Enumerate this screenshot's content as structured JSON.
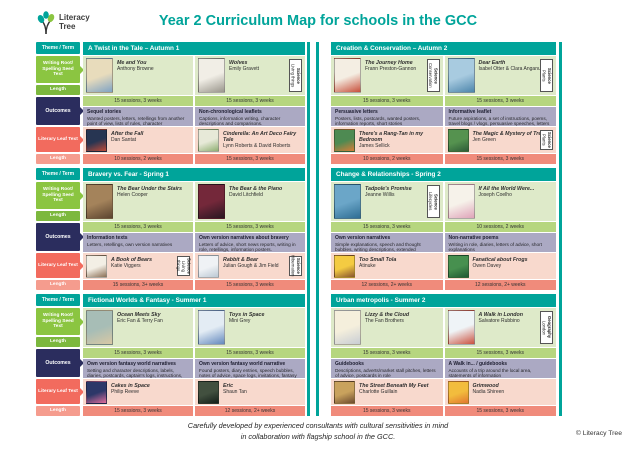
{
  "page": {
    "logo": {
      "line1": "Literacy",
      "line2": "Tree"
    },
    "title": "Year 2 Curriculum Map for schools in the GCC",
    "footer_line1": "Carefully developed by experienced consultants with cultural sensitivities in mind",
    "footer_line2": "in collaboration with flagship school in the GCC.",
    "copyright": "© Literacy Tree"
  },
  "colors": {
    "teal": "#00A49A",
    "root_section_bg": "#DEEAC9",
    "root_sessions_bar": "#B6D67F",
    "outcomes_bg": "#ABA9C3",
    "leaf_section_bg": "#F8D9CD",
    "leaf_sessions_bar": "#F08B7B",
    "sidebar_green": "#8BC541",
    "sidebar_navy": "#2B2D5E",
    "sidebar_coral": "#F26B5E",
    "sidebar_coral_light": "#F59C8E"
  },
  "sidebar": {
    "items": [
      {
        "label": "Theme / Term",
        "type": "theme"
      },
      {
        "label": "Writing Root/ Spelling Seed Text",
        "type": "root",
        "arrow": true
      },
      {
        "label": "Length",
        "type": "length-green"
      },
      {
        "label": "Outcomes",
        "type": "outcomes",
        "arrow": true
      },
      {
        "label": "Literary Leaf Text",
        "type": "leaf",
        "arrow": true
      },
      {
        "label": "Length",
        "type": "length-coral"
      }
    ]
  },
  "rows": [
    {
      "panels": [
        {
          "title": "A Twist in the Tale – Autumn 1",
          "halves": [
            {
              "root": {
                "title": "Me and You",
                "author": "Anthony Browne",
                "c1": "#E8DCBC",
                "c2": "#7FA3C4"
              },
              "root_sessions": "15 sessions, 3 weeks",
              "outcome_title": "Sequel stories",
              "outcome_text": "Wanted posters, letters, retellings from another point of view, lists of rules, character descriptions.",
              "leaf": {
                "title": "After the Fall",
                "author": "Dan Santat",
                "c1": "#273552",
                "c2": "#C14B38"
              },
              "leaf_sessions": "10 sessions, 2 weeks"
            },
            {
              "root": {
                "title": "Wolves",
                "author": "Emily Gravett",
                "tag": [
                  "Science",
                  "Living things"
                ],
                "c1": "#F1EEE6",
                "c2": "#9A968C"
              },
              "root_sessions": "15 sessions, 3 weeks",
              "outcome_title": "Non-chronological leaflets",
              "outcome_text": "Captions, information writing, character descriptions and comparisons.",
              "leaf": {
                "title": "Cinderella: An Art Deco Fairy Tale",
                "author": "Lynn Roberts & David Roberts",
                "c1": "#E7E9D8",
                "c2": "#8FAF72"
              },
              "leaf_sessions": "15 sessions, 3 weeks"
            }
          ]
        },
        {
          "title": "Creation & Conservation – Autumn 2",
          "halves": [
            {
              "root": {
                "title": "The Journey Home",
                "author": "Frann Preston-Gannon",
                "tag": [
                  "Science",
                  "Conservation"
                ],
                "c1": "#F4EEE3",
                "c2": "#C8503C"
              },
              "root_sessions": "15 sessions, 3 weeks",
              "outcome_title": "Persuasive letters",
              "outcome_text": "Posters, lists, postcards, wanted posters, information reports, short stories",
              "leaf": {
                "title": "There's a Rang-Tan in my Bedroom",
                "author": "James Sellick",
                "c1": "#4E8A52",
                "c2": "#D97E38"
              },
              "leaf_sessions": "10 sessions, 2 weeks"
            },
            {
              "root": {
                "title": "Dear Earth",
                "author": "Isabel Otter & Clara Anganuzzi",
                "tag": [
                  "Science",
                  "Plants"
                ],
                "c1": "#A8CBE0",
                "c2": "#4D86AC"
              },
              "root_sessions": "15 sessions, 3 weeks",
              "outcome_title": "Informative leaflet",
              "outcome_text": "Future aspirations, a set of instructions, poems, travel blogs / vlogs, persuasive speeches, letters",
              "leaf": {
                "title": "The Magic & Mystery of Trees",
                "author": "Jen Green",
                "tag": [
                  "Science",
                  "Plants"
                ],
                "c1": "#55924F",
                "c2": "#2E5D38"
              },
              "leaf_sessions": "15 sessions, 3 weeks"
            }
          ]
        }
      ]
    },
    {
      "panels": [
        {
          "title": "Bravery vs. Fear - Spring 1",
          "halves": [
            {
              "root": {
                "title": "The Bear Under the Stairs",
                "author": "Helen Cooper",
                "c1": "#A4835B",
                "c2": "#5C4530"
              },
              "root_sessions": "15 sessions, 3 weeks",
              "outcome_title": "Information texts",
              "outcome_text": "Letters, retellings, own version narratives",
              "leaf": {
                "title": "A Book of Bears",
                "author": "Katie Viggers",
                "tag": [
                  "Science",
                  "Living things"
                ],
                "c1": "#F3EFE5",
                "c2": "#8C7157"
              },
              "leaf_sessions": "15 sessions, 3+ weeks"
            },
            {
              "root": {
                "title": "The Bear & the Piano",
                "author": "David Litchfield",
                "c1": "#74283A",
                "c2": "#2A1722"
              },
              "root_sessions": "15 sessions, 3 weeks",
              "outcome_title": "Own version narratives about bravery",
              "outcome_text": "Letters of advice, short news reports, writing in role, retellings, information posters.",
              "leaf": {
                "title": "Rabbit & Bear",
                "author": "Julian Gough & Jim Field",
                "tag": [
                  "Science",
                  "Hibernation"
                ],
                "c1": "#EFF2F5",
                "c2": "#BCC9D4"
              },
              "leaf_sessions": "15 sessions, 3 weeks"
            }
          ]
        },
        {
          "title": "Change & Relationships - Spring 2",
          "halves": [
            {
              "root": {
                "title": "Tadpole's Promise",
                "author": "Jeanne Willis",
                "tag": [
                  "Science",
                  "Lifecycles"
                ],
                "c1": "#6BA6C8",
                "c2": "#2F6E94"
              },
              "root_sessions": "15 sessions, 3 weeks",
              "outcome_title": "Own version narratives",
              "outcome_text": "Simple explanations, speech and thought bubbles, writing descriptions, extended explanations",
              "leaf": {
                "title": "Too Small Tola",
                "author": "Atinuke",
                "c1": "#F4CB42",
                "c2": "#8A5630"
              },
              "leaf_sessions": "12 sessions, 2+ weeks"
            },
            {
              "root": {
                "title": "If All the World Were...",
                "author": "Joseph Coelho",
                "c1": "#F6F2EA",
                "c2": "#DFA3B9"
              },
              "root_sessions": "10 sessions, 2 weeks",
              "outcome_title": "Non-narrative poems",
              "outcome_text": "Writing in role, diaries, letters of advice, short explanations",
              "leaf": {
                "title": "Fanatical about Frogs",
                "author": "Owen Davey",
                "c1": "#47904F",
                "c2": "#1F5A33"
              },
              "leaf_sessions": "12 sessions, 2+ weeks"
            }
          ]
        }
      ]
    },
    {
      "panels": [
        {
          "title": "Fictional Worlds & Fantasy - Summer 1",
          "halves": [
            {
              "root": {
                "title": "Ocean Meets Sky",
                "author": "Eric Fan & Terry Fan",
                "c1": "#A7BDB6",
                "c2": "#D9C8A4"
              },
              "root_sessions": "15 sessions, 3 weeks",
              "outcome_title": "Own version fantasy world narratives",
              "outcome_text": "Setting and character descriptions, labels, diaries, postcards, captain's logs, instructions, dialogue",
              "leaf": {
                "title": "Cakes in Space",
                "author": "Philip Reeve",
                "c1": "#2C3768",
                "c2": "#E06E9C"
              },
              "leaf_sessions": "15 sessions, 3 weeks"
            },
            {
              "root": {
                "title": "Toys in Space",
                "author": "Mini Grey",
                "c1": "#E3ECF4",
                "c2": "#6489BE"
              },
              "root_sessions": "15 sessions, 3 weeks",
              "outcome_title": "Own version fantasy world narrative",
              "outcome_text": "Found posters, diary entries, speech bubbles, notes of advice, space logs, invitations, fantasy setting descriptions",
              "leaf": {
                "title": "Eric",
                "author": "Shaun Tan",
                "c1": "#42503F",
                "c2": "#16201A"
              },
              "leaf_sessions": "12 sessions, 2+ weeks"
            }
          ]
        },
        {
          "title": "Urban metropolis - Summer 2",
          "halves": [
            {
              "root": {
                "title": "Lizzy & the Cloud",
                "author": "The Fan Brothers",
                "c1": "#F5EFDC",
                "c2": "#C8CDD4"
              },
              "root_sessions": "15 sessions, 3 weeks",
              "outcome_title": "Guidebooks",
              "outcome_text": "Descriptions, adverts/market stall pitches, letters of advice, postcards in role",
              "leaf": {
                "title": "The Street Beneath My Feet",
                "author": "Charlotte Guillain",
                "c1": "#C9A25D",
                "c2": "#6E4C2F"
              },
              "leaf_sessions": "15 sessions, 3 weeks"
            },
            {
              "root": {
                "title": "A Walk in London",
                "author": "Salvatore Rubbino",
                "tag": [
                  "Geography",
                  "London"
                ],
                "c1": "#EFF4F7",
                "c2": "#CB5240"
              },
              "root_sessions": "15 sessions, 3 weeks",
              "outcome_title": "A Walk in... / guidebooks",
              "outcome_text": "Accounts of a trip around the local area, statements of information",
              "leaf": {
                "title": "Grimwood",
                "author": "Nadia Shireen",
                "c1": "#F2BC3D",
                "c2": "#E2782F"
              },
              "leaf_sessions": "15 sessions, 3 weeks"
            }
          ]
        }
      ]
    }
  ]
}
